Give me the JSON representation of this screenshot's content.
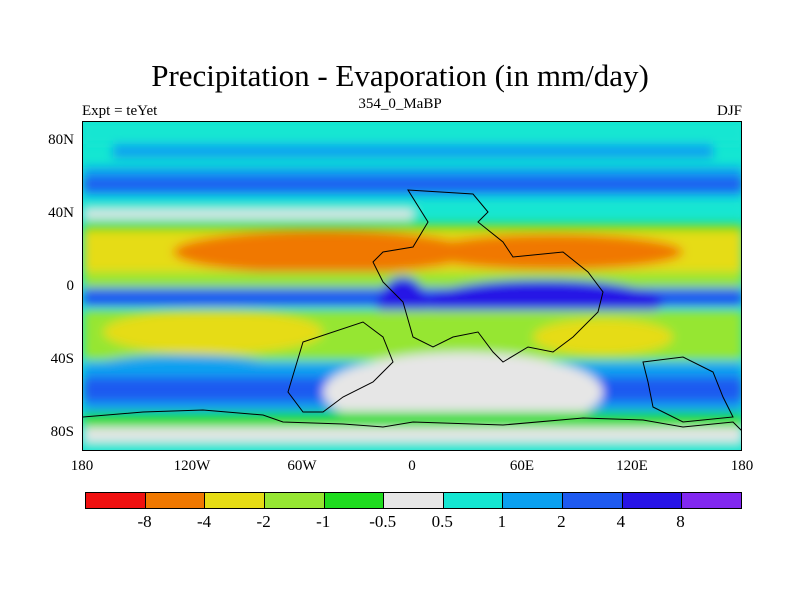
{
  "title": "Precipitation - Evaporation (in mm/day)",
  "subtitle": "354_0_MaBP",
  "left_label": "Expt = teYet",
  "right_label": "DJF",
  "y_ticks": [
    "80N",
    "40N",
    "0",
    "40S",
    "80S"
  ],
  "x_ticks": [
    "180",
    "120W",
    "60W",
    "0",
    "60E",
    "120E",
    "180"
  ],
  "colorbar": {
    "colors": [
      "#f01010",
      "#f07800",
      "#e6dc14",
      "#96e632",
      "#1edc1e",
      "#e6e6e6",
      "#14e6d2",
      "#0aa0f0",
      "#1e5af0",
      "#2814e6",
      "#8228f0"
    ],
    "labels": [
      "-8",
      "-4",
      "-2",
      "-1",
      "-0.5",
      "0.5",
      "1",
      "2",
      "4",
      "8"
    ]
  }
}
